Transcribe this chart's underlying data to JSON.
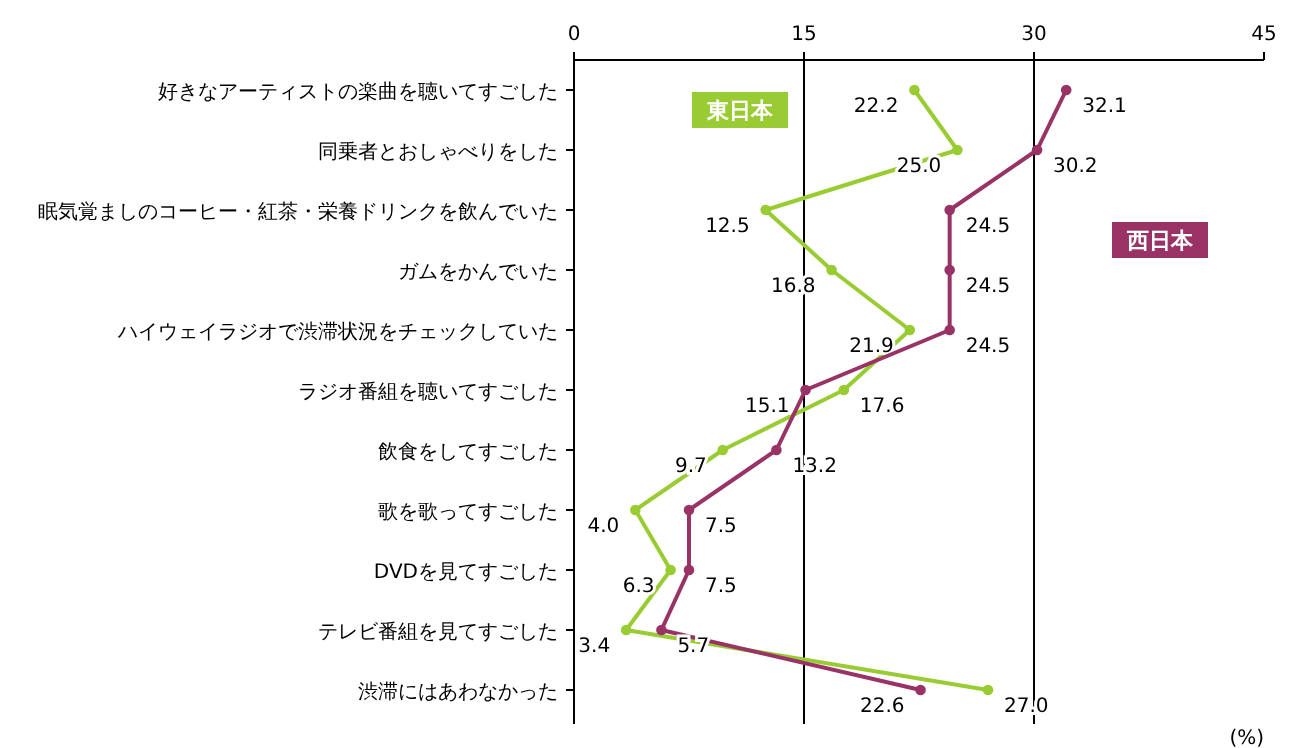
{
  "chart_data": {
    "type": "line",
    "orientation": "horizontal",
    "categories": [
      "好きなアーティストの楽曲を聴いてすごした",
      "同乗者とおしゃべりをした",
      "眠気覚ましのコーヒー・紅茶・栄養ドリンクを飲んでいた",
      "ガムをかんでいた",
      "ハイウェイラジオで渋滞状況をチェックしていた",
      "ラジオ番組を聴いてすごした",
      "飲食をしてすごした",
      "歌を歌ってすごした",
      "DVDを見てすごした",
      "テレビ番組を見てすごした",
      "渋滞にはあわなかった"
    ],
    "series": [
      {
        "name": "東日本",
        "color": "#99cc33",
        "values": [
          22.2,
          25,
          12.5,
          16.8,
          21.9,
          17.6,
          9.7,
          4,
          6.3,
          3.4,
          27
        ],
        "value_labels": [
          "22.2",
          "25.0",
          "12.5",
          "16.8",
          "21.9",
          "17.6",
          "9.7",
          "4.0",
          "6.3",
          "3.4",
          "27.0"
        ]
      },
      {
        "name": "西日本",
        "color": "#993366",
        "values": [
          32.1,
          30.2,
          24.5,
          24.5,
          24.5,
          15.1,
          13.2,
          7.5,
          7.5,
          5.7,
          22.6
        ],
        "value_labels": [
          "32.1",
          "30.2",
          "24.5",
          "24.5",
          "24.5",
          "15.1",
          "13.2",
          "7.5",
          "7.5",
          "5.7",
          "22.6"
        ]
      }
    ],
    "xlim": [
      0,
      45
    ],
    "xticks": [
      0,
      15,
      30,
      45
    ],
    "xlabel": "(%)",
    "grid": "x",
    "marker": "circle"
  }
}
